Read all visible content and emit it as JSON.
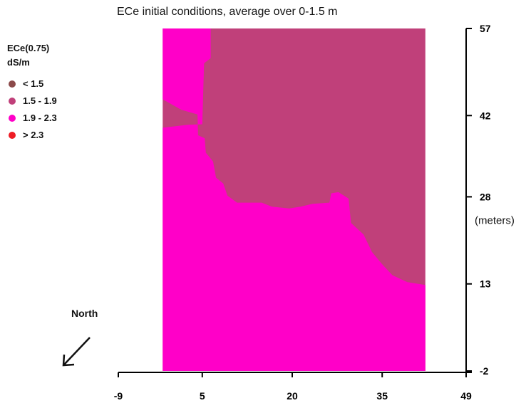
{
  "chart_data": {
    "type": "heatmap",
    "title": "ECe initial conditions, average over 0-1.5 m",
    "legend": {
      "title_line1": "ECe(0.75)",
      "title_line2": "dS/m",
      "entries": [
        {
          "label": "< 1.5",
          "color": "#8b4a4a"
        },
        {
          "label": "1.5 -  1.9",
          "color": "#c0407a"
        },
        {
          "label": "1.9 -  2.3",
          "color": "#ff00c8"
        },
        {
          "label": "> 2.3",
          "color": "#ee1c25"
        }
      ]
    },
    "x_ticks": [
      "-9",
      "5",
      "20",
      "35",
      "49"
    ],
    "x_tick_values": [
      -9,
      5,
      20,
      35,
      49
    ],
    "y_ticks": [
      "57",
      "42",
      "28",
      "13",
      "-2"
    ],
    "y_tick_values": [
      57,
      42,
      28,
      13,
      -2
    ],
    "ylabel": "(meters)",
    "xlim": [
      -9,
      49
    ],
    "ylim": [
      -2,
      57
    ],
    "data_extent_x": [
      -1.6,
      42.2
    ],
    "region_1_9_to_2_3": [
      [
        -1.6,
        -2
      ],
      [
        42.2,
        -2
      ],
      [
        42.2,
        12.8
      ],
      [
        39.2,
        13.3
      ],
      [
        36.7,
        14.5
      ],
      [
        34.9,
        16.5
      ],
      [
        33.3,
        18.5
      ],
      [
        31.9,
        21.5
      ],
      [
        29.8,
        23.5
      ],
      [
        29.4,
        27.7
      ],
      [
        27.7,
        28.8
      ],
      [
        26.5,
        28.6
      ],
      [
        26.2,
        27.0
      ],
      [
        23.4,
        26.8
      ],
      [
        21.4,
        26.3
      ],
      [
        19.5,
        26.0
      ],
      [
        16.6,
        26.3
      ],
      [
        14.9,
        27.0
      ],
      [
        10.8,
        27.0
      ],
      [
        9.2,
        28.2
      ],
      [
        8.5,
        30.3
      ],
      [
        7.3,
        31.3
      ],
      [
        6.8,
        34.1
      ],
      [
        5.6,
        35.6
      ],
      [
        5.4,
        38.1
      ],
      [
        4.3,
        38.6
      ],
      [
        4.2,
        42.2
      ],
      [
        1.5,
        43.0
      ],
      [
        -1.6,
        44.8
      ],
      [
        -1.6,
        57
      ],
      [
        6.4,
        57
      ],
      [
        6.4,
        51.9
      ],
      [
        5.3,
        51.0
      ],
      [
        5.0,
        40.5
      ],
      [
        2.6,
        40.4
      ],
      [
        -1.6,
        39.9
      ]
    ],
    "notes": [
      {
        "label": "North"
      }
    ]
  }
}
